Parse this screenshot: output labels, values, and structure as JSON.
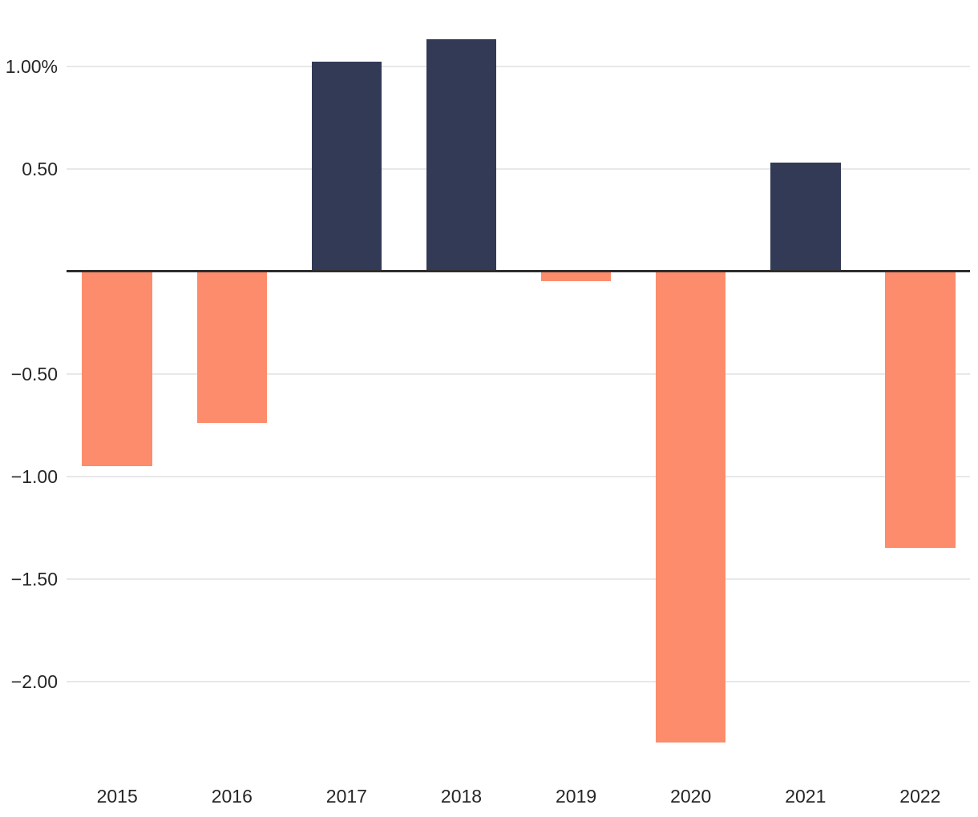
{
  "chart_data": {
    "type": "bar",
    "categories": [
      "2015",
      "2016",
      "2017",
      "2018",
      "2019",
      "2020",
      "2021",
      "2022"
    ],
    "values": [
      -0.95,
      -0.74,
      1.02,
      1.13,
      -0.05,
      -2.3,
      0.53,
      -1.35
    ],
    "title": "",
    "xlabel": "",
    "ylabel": "",
    "unit": "%",
    "ylim": [
      -2.43,
      1.32
    ],
    "grid": true,
    "legend": false,
    "yticks": [
      {
        "value": 1.0,
        "label": "1.00%"
      },
      {
        "value": 0.5,
        "label": "0.50"
      },
      {
        "value": -0.5,
        "label": "−0.50"
      },
      {
        "value": -1.0,
        "label": "−1.00"
      },
      {
        "value": -1.5,
        "label": "−1.50"
      },
      {
        "value": -2.0,
        "label": "−2.00"
      }
    ]
  },
  "colors": {
    "positive_bar": "#333a56",
    "negative_bar": "#fc8c6b",
    "gridline": "#e8e8e8",
    "zero_line": "#2d2d2d",
    "tick_text": "#262626",
    "background": "#ffffff"
  }
}
